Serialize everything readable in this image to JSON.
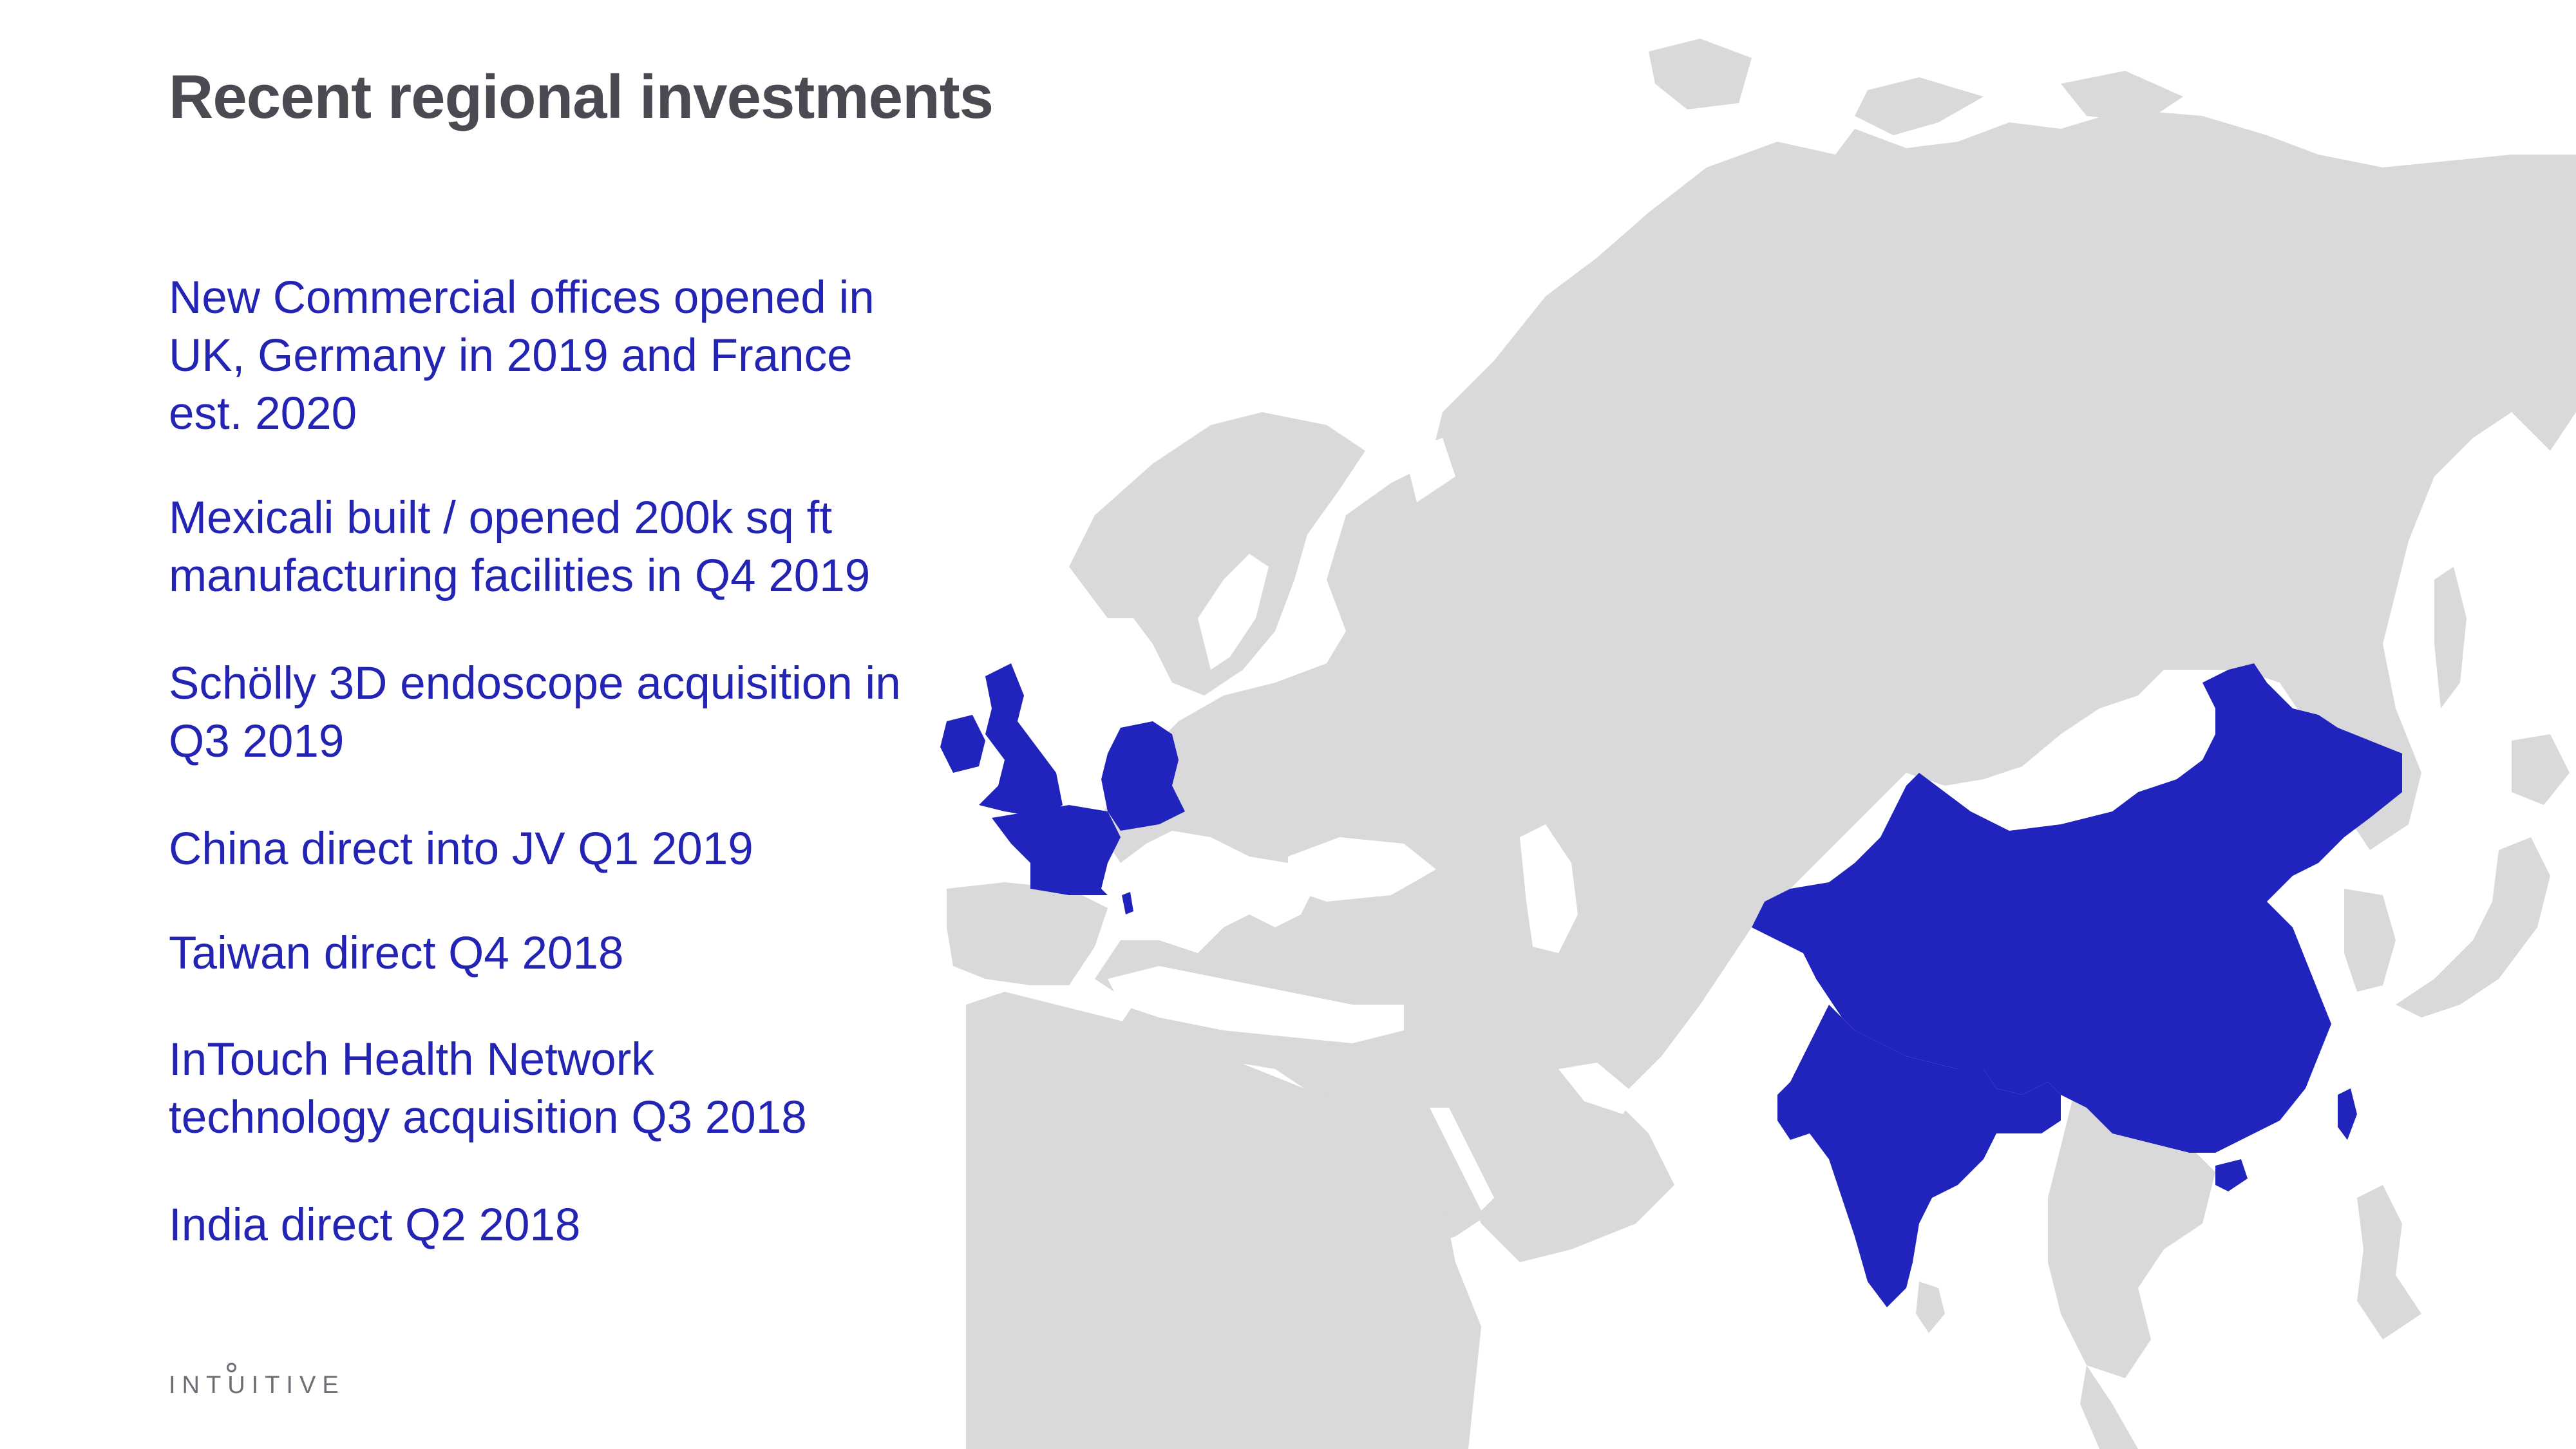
{
  "slide": {
    "title": "Recent regional investments",
    "bullets": [
      "New Commercial offices opened in UK, Germany in 2019 and France est. 2020",
      "Mexicali built / opened 200k sq ft manufacturing facilities in Q4 2019",
      "Schölly 3D endoscope acquisition in Q3 2019",
      "China direct into JV Q1 2019",
      "Taiwan direct Q4 2018",
      "InTouch Health Network technology acquisition Q3 2018",
      "India direct Q2 2018"
    ],
    "logo": "INTUITIVE"
  },
  "map": {
    "land_color": "#d9d9dc",
    "highlight_color": "#2024bc",
    "highlighted_countries": [
      "United Kingdom",
      "Ireland",
      "France",
      "Germany",
      "China",
      "India",
      "Taiwan"
    ]
  }
}
